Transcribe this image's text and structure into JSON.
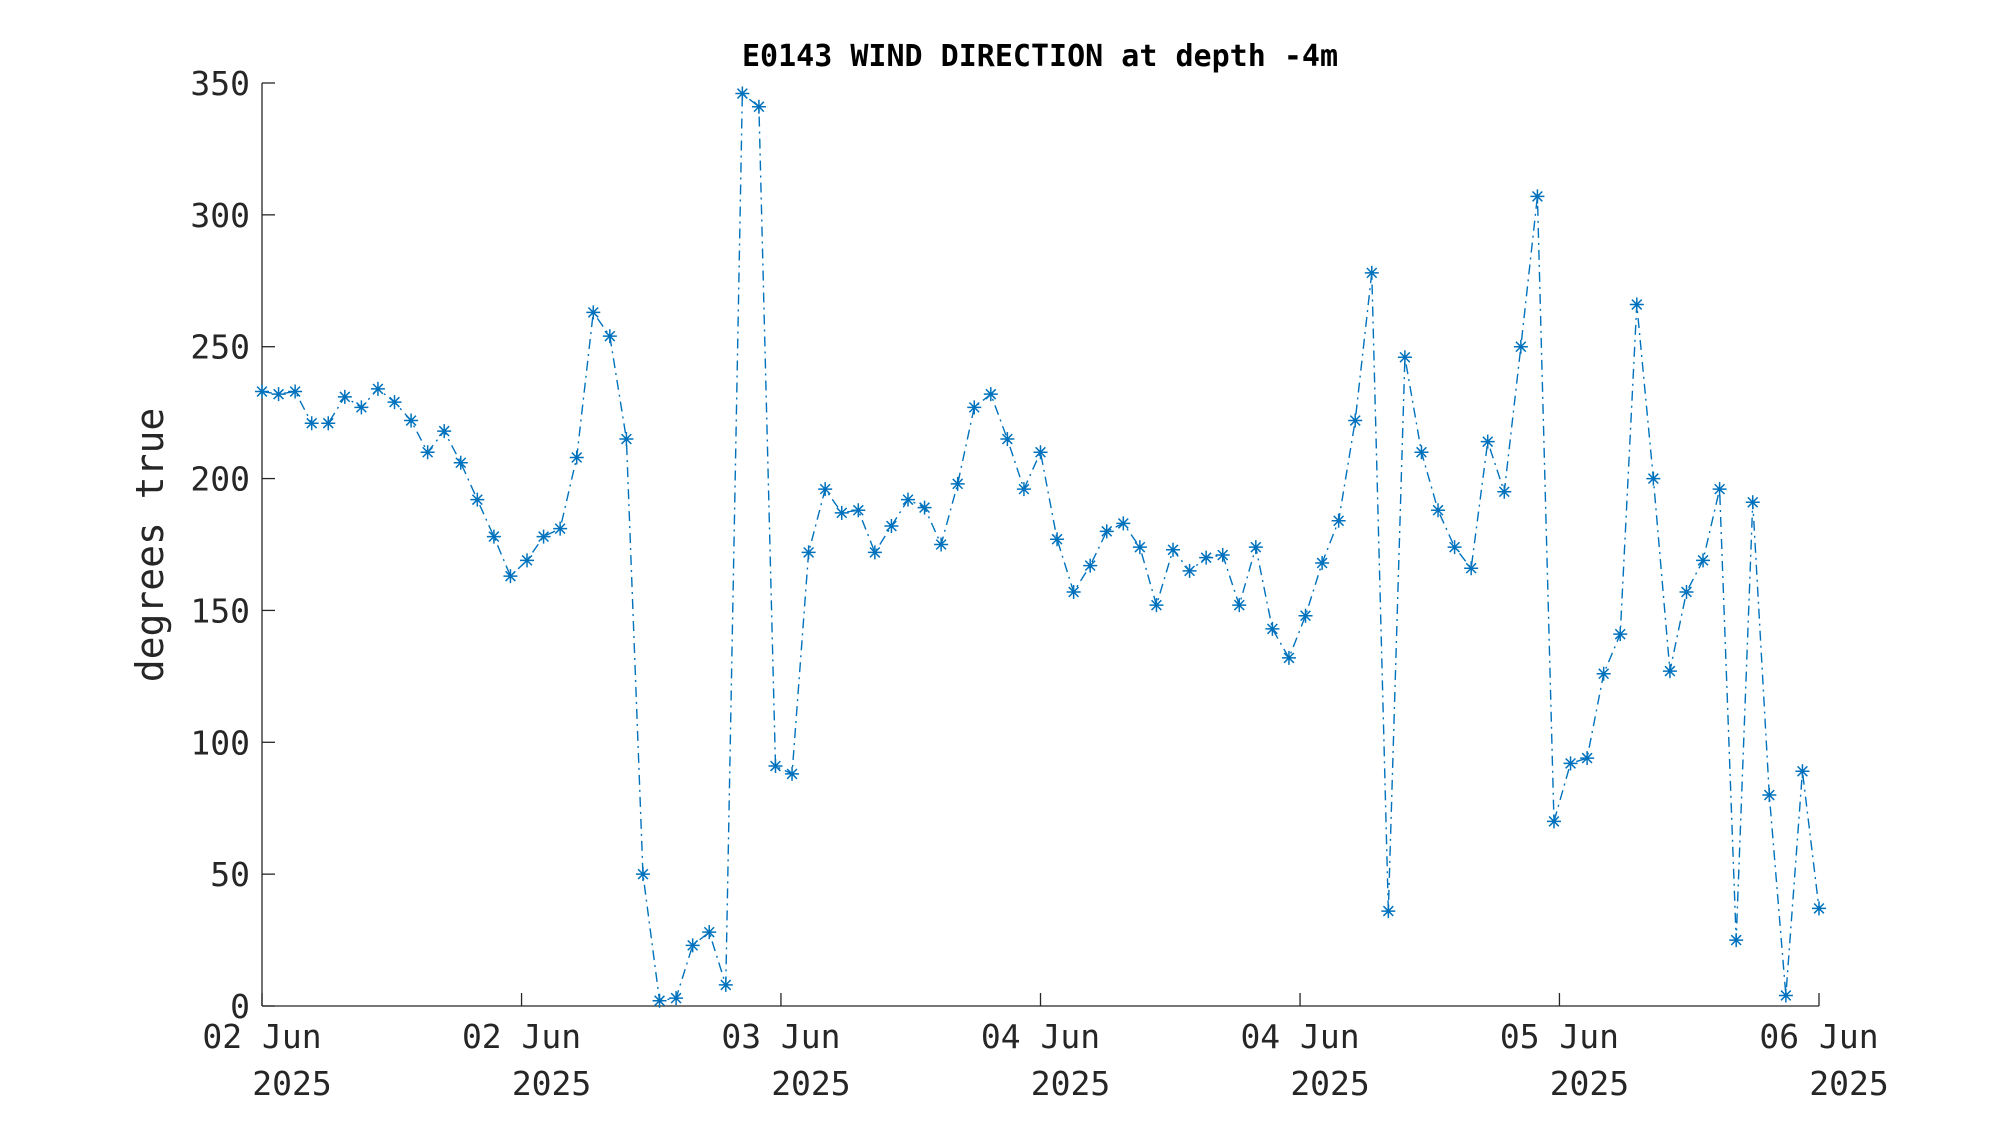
{
  "chart_data": {
    "type": "line",
    "title": "E0143 WIND DIRECTION at depth -4m",
    "y_label": "degrees true",
    "color": "#0072bd",
    "line_style": "dash-dot",
    "marker": "asterisk",
    "values": [
      233,
      232,
      233,
      221,
      221,
      231,
      227,
      234,
      229,
      222,
      210,
      218,
      206,
      192,
      178,
      163,
      169,
      178,
      181,
      208,
      263,
      254,
      215,
      50,
      2,
      3,
      23,
      28,
      8,
      346,
      341,
      91,
      88,
      172,
      196,
      187,
      188,
      172,
      182,
      192,
      189,
      175,
      198,
      227,
      232,
      215,
      196,
      210,
      177,
      157,
      167,
      180,
      183,
      174,
      152,
      173,
      165,
      170,
      171,
      152,
      174,
      143,
      132,
      148,
      168,
      184,
      222,
      278,
      36,
      246,
      210,
      188,
      174,
      166,
      214,
      195,
      250,
      307,
      70,
      92,
      94,
      126,
      141,
      266,
      200,
      127,
      157,
      169,
      196,
      25,
      191,
      80,
      4,
      89,
      37
    ],
    "xlim": [
      0,
      94
    ],
    "xticks": [
      {
        "value": 0,
        "label": "02 Jun\n2025"
      },
      {
        "value": 15.67,
        "label": "02 Jun\n2025"
      },
      {
        "value": 31.33,
        "label": "03 Jun\n2025"
      },
      {
        "value": 47,
        "label": "04 Jun\n2025"
      },
      {
        "value": 62.67,
        "label": "04 Jun\n2025"
      },
      {
        "value": 78.33,
        "label": "05 Jun\n2025"
      },
      {
        "value": 94,
        "label": "06 Jun\n2025"
      }
    ],
    "ylim": [
      0,
      350
    ],
    "yticks": [
      0,
      50,
      100,
      150,
      200,
      250,
      300,
      350
    ],
    "grid": false
  }
}
